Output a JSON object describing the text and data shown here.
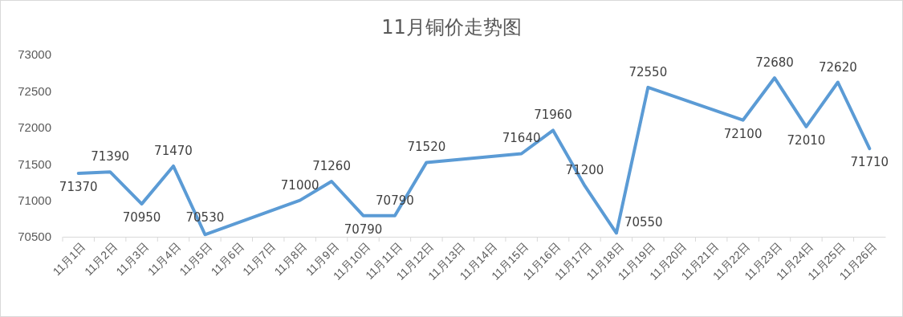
{
  "chart_data": {
    "type": "line",
    "title": "11月铜价走势图",
    "categories": [
      "11月1日",
      "11月2日",
      "11月3日",
      "11月4日",
      "11月5日",
      "11月6日",
      "11月7日",
      "11月8日",
      "11月9日",
      "11月10日",
      "11月11日",
      "11月12日",
      "11月13日",
      "11月14日",
      "11月15日",
      "11月16日",
      "11月17日",
      "11月18日",
      "11月19日",
      "11月20日",
      "11月21日",
      "11月22日",
      "11月23日",
      "11月24日",
      "11月25日",
      "11月26日"
    ],
    "series": [
      {
        "color": "#5b9bd5",
        "values": [
          71370,
          71390,
          70950,
          71470,
          70530,
          null,
          null,
          71000,
          71260,
          70790,
          70790,
          71520,
          null,
          null,
          71640,
          71960,
          71200,
          70550,
          72550,
          null,
          null,
          72100,
          72680,
          72010,
          72620,
          71710
        ]
      }
    ],
    "ylim": [
      70500,
      73000
    ],
    "yticks": [
      70500,
      71000,
      71500,
      72000,
      72500,
      73000
    ],
    "grid": false,
    "marker": "none",
    "line_style": "solid",
    "data_labels": true
  }
}
